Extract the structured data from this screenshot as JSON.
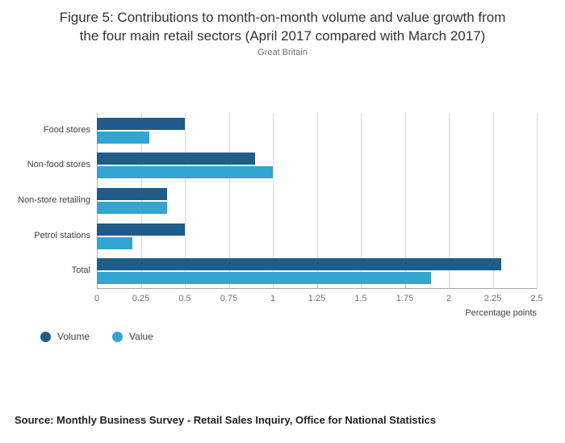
{
  "title_lines": [
    "Figure 5: Contributions to month-on-month volume and value growth from",
    "the four main retail sectors (April 2017 compared with March 2017)"
  ],
  "subtitle": "Great Britain",
  "chart_data": {
    "type": "bar",
    "orientation": "horizontal",
    "title": "Figure 5: Contributions to month-on-month volume and value growth from the four main retail sectors (April 2017 compared with March 2017)",
    "subtitle": "Great Britain",
    "categories": [
      "Food stores",
      "Non-food stores",
      "Non-store retailing",
      "Petrol stations",
      "Total"
    ],
    "series": [
      {
        "name": "Volume",
        "color": "#1e5c8b",
        "values": [
          0.5,
          0.9,
          0.4,
          0.5,
          2.3
        ]
      },
      {
        "name": "Value",
        "color": "#33a5d1",
        "values": [
          0.3,
          1.0,
          0.4,
          0.2,
          1.9
        ]
      }
    ],
    "xlabel": "Percentage points",
    "xlim": [
      0,
      2.5
    ],
    "xticks": [
      0,
      0.25,
      0.5,
      0.75,
      1,
      1.25,
      1.5,
      1.75,
      2,
      2.25,
      2.5
    ],
    "xtick_labels": [
      "0",
      "0.25",
      "0.5",
      "0.75",
      "1",
      "1.25",
      "1.5",
      "1.75",
      "2",
      "2.25",
      "2.5"
    ],
    "grid": true,
    "legend_position": "bottom-left"
  },
  "source": "Source: Monthly Business Survey - Retail Sales Inquiry, Office for National Statistics"
}
